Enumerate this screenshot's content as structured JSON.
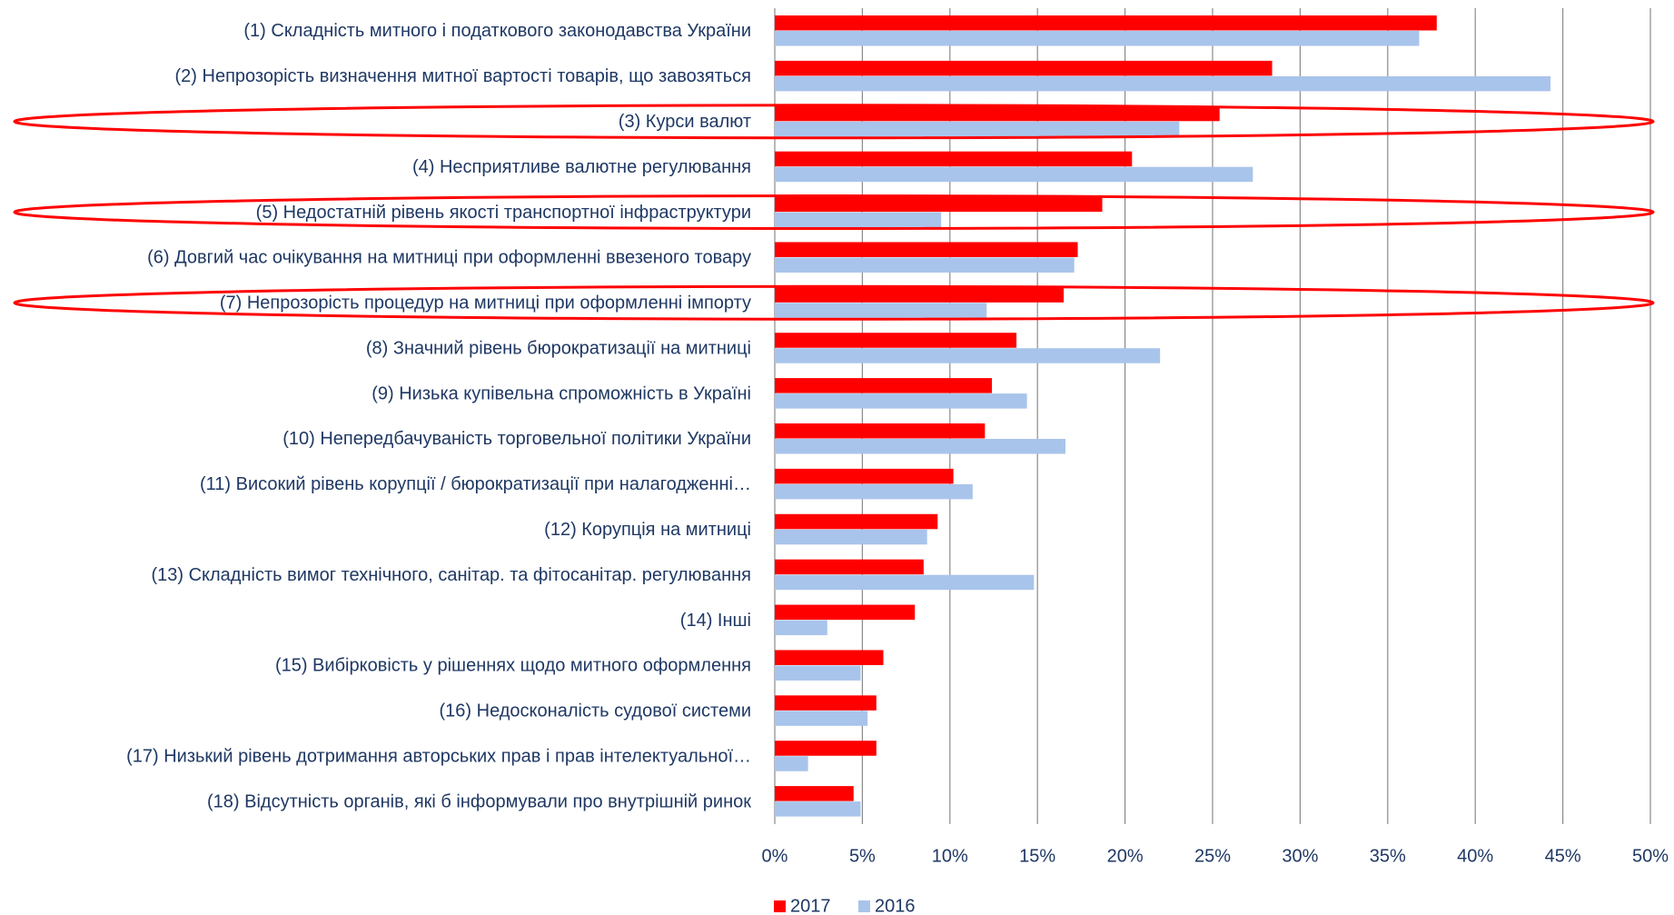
{
  "chart_data": {
    "type": "bar",
    "orientation": "horizontal",
    "categories": [
      "(1) Складність митного і податкового законодавства України",
      "(2) Непрозорість визначення митної вартості товарів, що завозяться",
      "(3) Курси валют",
      "(4) Несприятливе валютне регулювання",
      "(5) Недостатній рівень якості транспортної інфраструктури",
      "(6) Довгий час очікування на митниці при оформленні ввезеного товару",
      "(7) Непрозорість процедур на митниці при оформленні імпорту",
      "(8) Значний рівень бюрократизації на митниці",
      "(9) Низька купівельна спроможність в Україні",
      "(10) Непередбачуваність торговельної політики України",
      "(11) Високий рівень корупції / бюрократизації при налагодженні…",
      "(12) Корупція на митниці",
      "(13) Складність вимог технічного, санітар. та фітосанітар. регулювання",
      "(14) Інші",
      "(15) Вибірковість у рішеннях щодо митного оформлення",
      "(16) Недосконалість судової системи",
      "(17) Низький рівень дотримання авторських прав і прав інтелектуальної…",
      "(18) Відсутність органів, які б інформували про внутрішній ринок"
    ],
    "series": [
      {
        "name": "2017",
        "color": "#ff0000",
        "values": [
          37.8,
          28.4,
          25.4,
          20.4,
          18.7,
          17.3,
          16.5,
          13.8,
          12.4,
          12.0,
          10.2,
          9.3,
          8.5,
          8.0,
          6.2,
          5.8,
          5.8,
          4.5
        ]
      },
      {
        "name": "2016",
        "color": "#a9c4eb",
        "values": [
          36.8,
          44.3,
          23.1,
          27.3,
          9.5,
          17.1,
          12.1,
          22.0,
          14.4,
          16.6,
          11.3,
          8.7,
          14.8,
          3.0,
          4.9,
          5.3,
          1.9,
          4.9
        ]
      }
    ],
    "xlim": [
      0,
      50
    ],
    "xticks": [
      {
        "value": 0,
        "label": "0%"
      },
      {
        "value": 5,
        "label": "5%"
      },
      {
        "value": 10,
        "label": "10%"
      },
      {
        "value": 15,
        "label": "15%"
      },
      {
        "value": 20,
        "label": "20%"
      },
      {
        "value": 25,
        "label": "25%"
      },
      {
        "value": 30,
        "label": "30%"
      },
      {
        "value": 35,
        "label": "35%"
      },
      {
        "value": 40,
        "label": "40%"
      },
      {
        "value": 45,
        "label": "45%"
      },
      {
        "value": 50,
        "label": "50%"
      }
    ],
    "grid": true,
    "legend": "bottom"
  }
}
